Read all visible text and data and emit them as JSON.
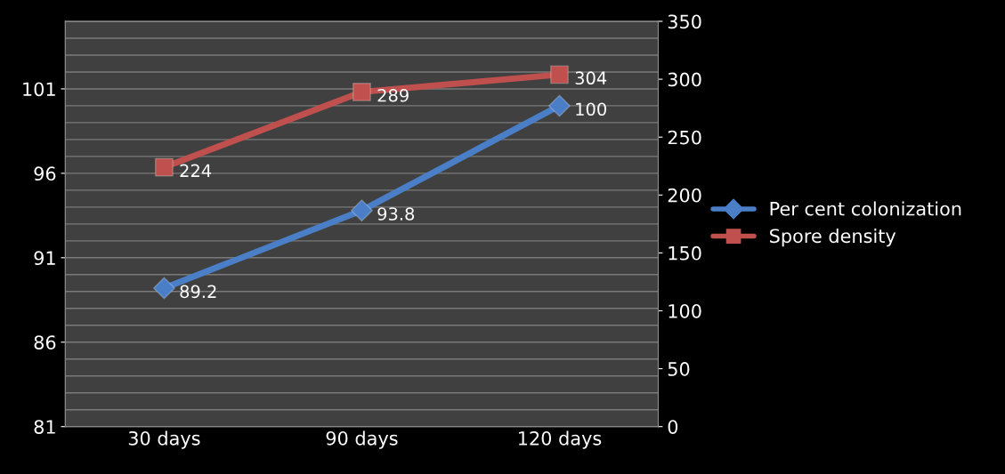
{
  "chart_data": {
    "type": "line",
    "categories": [
      "30 days",
      "90 days",
      "120 days"
    ],
    "series": [
      {
        "name": "Per cent colonization",
        "color": "#4a7fc8",
        "values": [
          89.2,
          93.8,
          100
        ],
        "marker": "diamond"
      },
      {
        "name": "Spore density",
        "color": "#c0504d",
        "values": [
          224,
          289,
          304
        ],
        "marker": "square",
        "axis": "y2"
      }
    ],
    "ylim": [
      81,
      105
    ],
    "yticks": [
      81,
      86,
      91,
      96,
      101
    ],
    "y2lim": [
      0,
      350
    ],
    "y2ticks": [
      0,
      50,
      100,
      150,
      200,
      250,
      300,
      350
    ],
    "data_labels": true,
    "grid": "y",
    "legend": "right",
    "line_style": "solid"
  }
}
